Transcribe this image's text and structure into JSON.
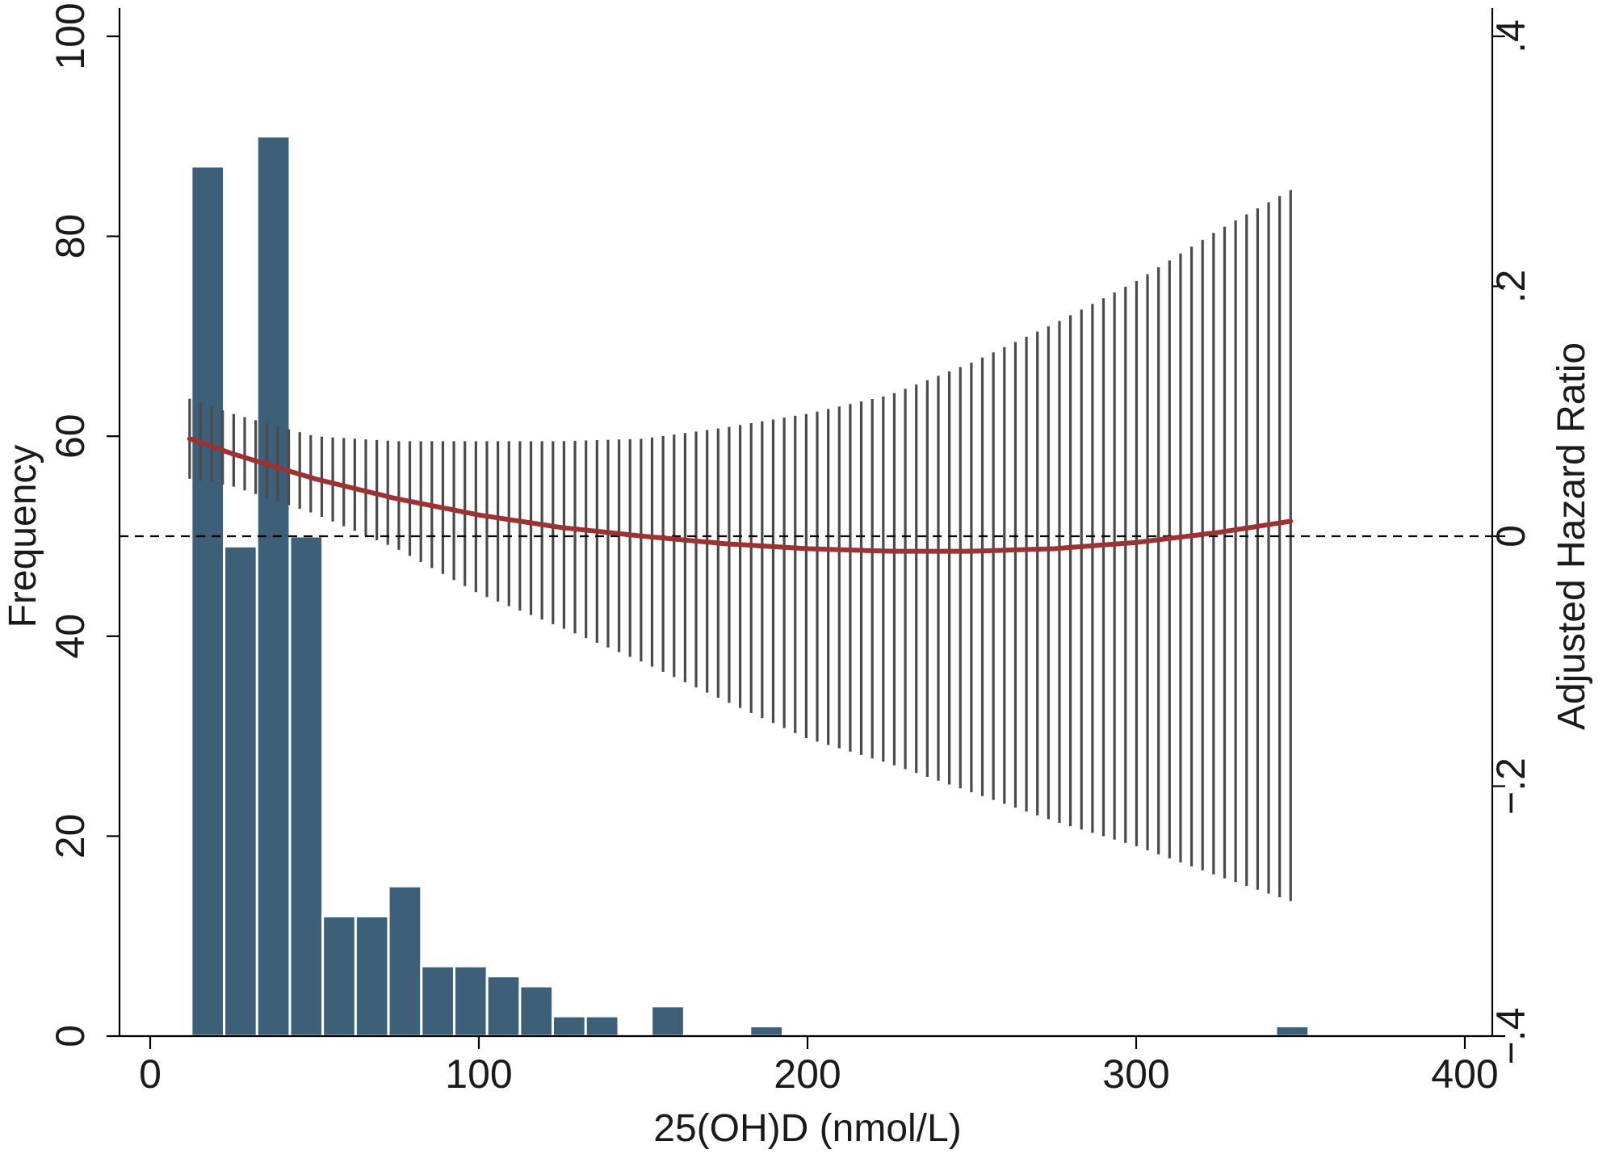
{
  "chart_data": {
    "type": "bar",
    "xlabel": "25(OH)D (nmol/L)",
    "ylabel": "Frequency",
    "y2label": "Adjusted Hazard Ratio",
    "xlim": [
      -5,
      410
    ],
    "ylim": [
      0,
      100
    ],
    "y2lim": [
      -0.4,
      0.4
    ],
    "x_ticks": [
      0,
      100,
      200,
      300,
      400
    ],
    "y_ticks": [
      0,
      20,
      40,
      60,
      80,
      100
    ],
    "y2_ticks": [
      -0.4,
      -0.2,
      0,
      0.2,
      0.4
    ],
    "x_tick_labels": [
      "0",
      "100",
      "200",
      "300",
      "400"
    ],
    "y_tick_labels": [
      "0",
      "20",
      "40",
      "60",
      "80",
      "100"
    ],
    "y2_tick_labels": [
      "−.4",
      "−.2",
      "0",
      ".2",
      ".4"
    ],
    "grid": false,
    "histogram": {
      "bin_width": 10,
      "bins": [
        {
          "x0": 12.5,
          "count": 87
        },
        {
          "x0": 22.5,
          "count": 49
        },
        {
          "x0": 32.5,
          "count": 90
        },
        {
          "x0": 42.5,
          "count": 50
        },
        {
          "x0": 52.5,
          "count": 12
        },
        {
          "x0": 62.5,
          "count": 12
        },
        {
          "x0": 72.5,
          "count": 15
        },
        {
          "x0": 82.5,
          "count": 7
        },
        {
          "x0": 92.5,
          "count": 7
        },
        {
          "x0": 102.5,
          "count": 6
        },
        {
          "x0": 112.5,
          "count": 5
        },
        {
          "x0": 122.5,
          "count": 2
        },
        {
          "x0": 132.5,
          "count": 2
        },
        {
          "x0": 152.5,
          "count": 3
        },
        {
          "x0": 182.5,
          "count": 1
        },
        {
          "x0": 342.5,
          "count": 1
        }
      ]
    },
    "reference_line": {
      "y2": 0
    },
    "fit": {
      "x": [
        12,
        25,
        50,
        75,
        100,
        125,
        150,
        175,
        200,
        225,
        250,
        275,
        300,
        325,
        347
      ],
      "hr": [
        0.078,
        0.066,
        0.046,
        0.03,
        0.017,
        0.007,
        0.0,
        -0.006,
        -0.01,
        -0.012,
        -0.012,
        -0.01,
        -0.005,
        0.003,
        0.012
      ]
    },
    "ci": {
      "x": [
        12,
        25,
        50,
        75,
        100,
        125,
        150,
        175,
        200,
        225,
        250,
        275,
        300,
        325,
        347
      ],
      "lower": [
        0.046,
        0.04,
        0.018,
        -0.01,
        -0.046,
        -0.073,
        -0.101,
        -0.132,
        -0.162,
        -0.182,
        -0.205,
        -0.228,
        -0.248,
        -0.272,
        -0.292
      ],
      "upper": [
        0.11,
        0.098,
        0.08,
        0.076,
        0.076,
        0.076,
        0.078,
        0.087,
        0.098,
        0.113,
        0.139,
        0.17,
        0.204,
        0.245,
        0.277
      ]
    }
  }
}
